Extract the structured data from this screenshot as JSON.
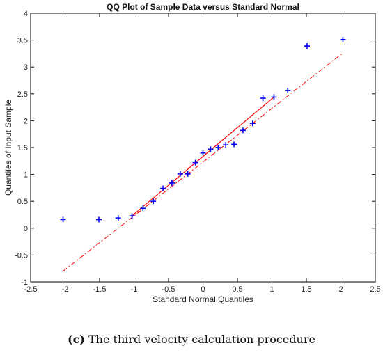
{
  "chart_data": {
    "type": "scatter",
    "title": "QQ Plot of Sample Data versus Standard Normal",
    "xlabel": "Standard Normal Quantiles",
    "ylabel": "Quantiles of Input Sample",
    "xlim": [
      -2.5,
      2.5
    ],
    "ylim": [
      -1,
      4
    ],
    "xticks": [
      -2.5,
      -2,
      -1.5,
      -1,
      -0.5,
      0,
      0.5,
      1,
      1.5,
      2,
      2.5
    ],
    "xtick_labels": [
      "-2.5",
      "-2",
      "-1.5",
      "-1",
      "-0.5",
      "0",
      "0.5",
      "1",
      "1.5",
      "2",
      "2.5"
    ],
    "yticks": [
      -1,
      -0.5,
      0,
      0.5,
      1,
      1.5,
      2,
      2.5,
      3,
      3.5,
      4
    ],
    "ytick_labels": [
      "-1",
      "-0.5",
      "0",
      "0.5",
      "1",
      "1.5",
      "2",
      "2.5",
      "3",
      "3.5",
      "4"
    ],
    "grid": false,
    "series": [
      {
        "marker": "+",
        "color": "#0000ff",
        "x": [
          -2.03,
          -1.51,
          -1.23,
          -1.03,
          -0.87,
          -0.72,
          -0.58,
          -0.45,
          -0.33,
          -0.22,
          -0.11,
          0.0,
          0.11,
          0.22,
          0.33,
          0.45,
          0.58,
          0.72,
          0.87,
          1.03,
          1.23,
          1.51,
          2.03
        ],
        "y": [
          0.16,
          0.16,
          0.19,
          0.23,
          0.37,
          0.5,
          0.74,
          0.84,
          1.01,
          1.01,
          1.22,
          1.4,
          1.47,
          1.5,
          1.55,
          1.56,
          1.82,
          1.95,
          2.42,
          2.44,
          2.56,
          3.39,
          3.51
        ]
      }
    ],
    "reference_line": {
      "color": "#ff0000",
      "solid_segment": {
        "x": [
          -1.03,
          1.03
        ],
        "y": [
          0.23,
          2.44
        ]
      },
      "dashed_extension": {
        "x": [
          -2.03,
          2.03
        ],
        "y": [
          -0.8,
          3.26
        ]
      }
    }
  },
  "caption": {
    "label": "(c)",
    "text": "The third velocity calculation procedure"
  }
}
